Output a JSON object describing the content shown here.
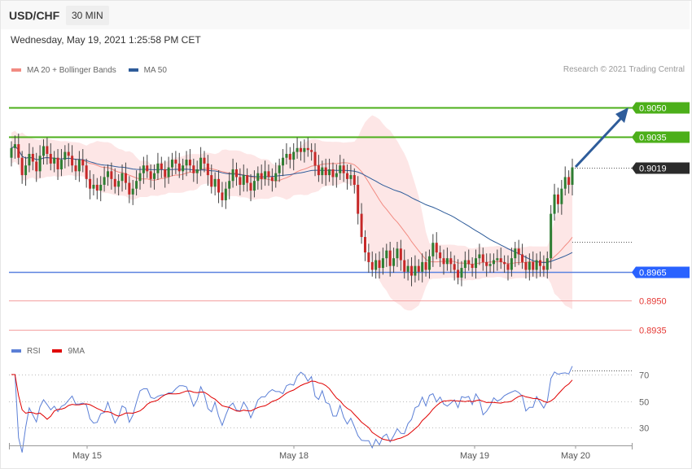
{
  "header": {
    "symbol": "USD/CHF",
    "timeframe": "30 MIN"
  },
  "timestamp": "Wednesday, May 19, 2021 1:25:58 PM CET",
  "legend": {
    "ma20": {
      "label": "MA 20 + Bollinger Bands",
      "color": "#f28b82"
    },
    "ma50": {
      "label": "MA 50",
      "color": "#2e5c9a"
    }
  },
  "copyright": "Research © 2021 Trading Central",
  "rsi_legend": {
    "rsi": {
      "label": "RSI",
      "color": "#5b7fd6"
    },
    "ma9": {
      "label": "9MA",
      "color": "#e00000"
    }
  },
  "colors": {
    "up": "#2e7d32",
    "down": "#c62828",
    "resistance": "#4caf1a",
    "support": "#2962ff",
    "support2": "#ef5350",
    "arrow": "#2e5c9a",
    "bollinger": "#fde2e2"
  },
  "chart_data": [
    {
      "type": "candlestick",
      "title": "USD/CHF 30 MIN",
      "x_ticks": [
        "May 15",
        "May 18",
        "May 19",
        "May 20"
      ],
      "ylim": [
        0.8928,
        0.9064
      ],
      "levels": [
        {
          "label": "0.9050",
          "value": 0.905,
          "kind": "resistance"
        },
        {
          "label": "0.9035",
          "value": 0.9035,
          "kind": "resistance"
        },
        {
          "label": "0.9019",
          "value": 0.9019,
          "kind": "last"
        },
        {
          "label": "0.8965",
          "value": 0.8965,
          "kind": "support"
        },
        {
          "label": "0.8950",
          "value": 0.895,
          "kind": "support2"
        },
        {
          "label": "0.8935",
          "value": 0.8935,
          "kind": "support2"
        }
      ],
      "close": [
        0.9029,
        0.9031,
        0.9024,
        0.9015,
        0.902,
        0.9026,
        0.9022,
        0.9017,
        0.9025,
        0.903,
        0.9026,
        0.9021,
        0.9024,
        0.9018,
        0.9023,
        0.9027,
        0.9025,
        0.902,
        0.9017,
        0.9023,
        0.902,
        0.9013,
        0.9008,
        0.901,
        0.9007,
        0.901,
        0.9014,
        0.9017,
        0.9013,
        0.9009,
        0.9012,
        0.9016,
        0.9011,
        0.9005,
        0.9008,
        0.9012,
        0.9016,
        0.902,
        0.9017,
        0.9013,
        0.9016,
        0.9021,
        0.9018,
        0.9014,
        0.9019,
        0.9023,
        0.9021,
        0.9017,
        0.902,
        0.9023,
        0.902,
        0.9016,
        0.9018,
        0.9024,
        0.9021,
        0.9015,
        0.9009,
        0.9013,
        0.9006,
        0.9002,
        0.9008,
        0.9012,
        0.9018,
        0.9014,
        0.901,
        0.9015,
        0.9011,
        0.9007,
        0.9012,
        0.9016,
        0.9013,
        0.9017,
        0.9014,
        0.9012,
        0.9016,
        0.902,
        0.9024,
        0.9026,
        0.9023,
        0.9027,
        0.9029,
        0.9027,
        0.9029,
        0.9028,
        0.9027,
        0.902,
        0.9015,
        0.9019,
        0.9015,
        0.9018,
        0.9014,
        0.9016,
        0.902,
        0.9016,
        0.9013,
        0.9015,
        0.901,
        0.8995,
        0.8983,
        0.8975,
        0.897,
        0.8966,
        0.8971,
        0.8967,
        0.8972,
        0.8976,
        0.8968,
        0.8972,
        0.8977,
        0.8971,
        0.8965,
        0.8968,
        0.8963,
        0.8968,
        0.8965,
        0.897,
        0.8966,
        0.8973,
        0.898,
        0.8975,
        0.8972,
        0.8969,
        0.8972,
        0.8969,
        0.8966,
        0.8962,
        0.8967,
        0.8971,
        0.8969,
        0.8967,
        0.8972,
        0.8974,
        0.897,
        0.8968,
        0.8969,
        0.8971,
        0.8972,
        0.897,
        0.8969,
        0.8966,
        0.8972,
        0.8977,
        0.8974,
        0.897,
        0.8966,
        0.897,
        0.8966,
        0.8971,
        0.8968,
        0.8966,
        0.8972,
        0.8995,
        0.9005,
        0.9,
        0.9008,
        0.9014,
        0.901,
        0.9019
      ]
    },
    {
      "type": "line",
      "title": "RSI",
      "series": [
        {
          "name": "RSI"
        },
        {
          "name": "9MA"
        }
      ],
      "ylim": [
        20,
        75
      ],
      "y_ticks": [
        "70",
        "50",
        "30"
      ]
    }
  ]
}
